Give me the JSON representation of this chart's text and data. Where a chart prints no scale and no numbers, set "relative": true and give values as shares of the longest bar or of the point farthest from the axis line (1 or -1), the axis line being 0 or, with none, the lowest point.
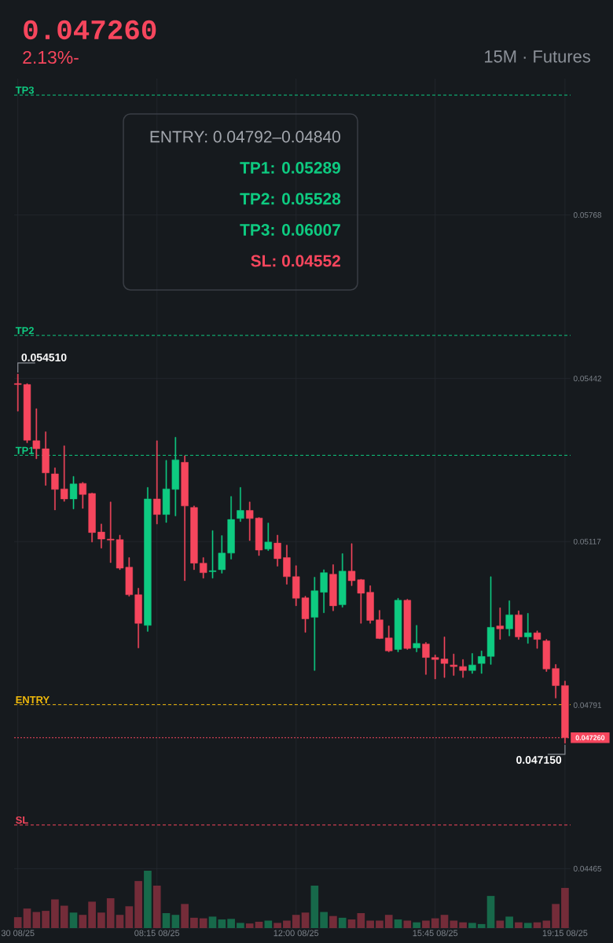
{
  "chart_data": [
    {
      "type": "candlestick",
      "title": "0.047260",
      "subtitle": "2.13%-",
      "categories": [
        "30 08/25",
        null,
        null,
        null,
        null,
        null,
        null,
        null,
        null,
        null,
        null,
        null,
        null,
        null,
        null,
        "08:15 08/25",
        null,
        null,
        null,
        null,
        null,
        null,
        null,
        null,
        null,
        null,
        null,
        null,
        null,
        null,
        "12:00 08/25",
        null,
        null,
        null,
        null,
        null,
        null,
        null,
        null,
        null,
        null,
        null,
        null,
        null,
        null,
        "15:45 08/25",
        null,
        null,
        null,
        null,
        null,
        null,
        null,
        null,
        null,
        null,
        null,
        null,
        null,
        "19:15 08/25"
      ],
      "ohlc": [
        [
          0.05432,
          0.05451,
          0.05377,
          0.0543
        ],
        [
          0.0543,
          0.05432,
          0.05314,
          0.05319
        ],
        [
          0.05318,
          0.05382,
          0.05282,
          0.05302
        ],
        [
          0.05302,
          0.05336,
          0.05229,
          0.05254
        ],
        [
          0.05252,
          0.05264,
          0.0518,
          0.05221
        ],
        [
          0.05222,
          0.05308,
          0.05197,
          0.05202
        ],
        [
          0.05202,
          0.05247,
          0.05182,
          0.05232
        ],
        [
          0.05233,
          0.05235,
          0.05183,
          0.05211
        ],
        [
          0.05213,
          0.05214,
          0.05116,
          0.05135
        ],
        [
          0.05136,
          0.05152,
          0.05104,
          0.05122
        ],
        [
          0.05122,
          0.05196,
          0.05075,
          0.0512
        ],
        [
          0.05121,
          0.0513,
          0.05061,
          0.05064
        ],
        [
          0.05066,
          0.05085,
          0.05008,
          0.05011
        ],
        [
          0.05011,
          0.05024,
          0.04905,
          0.04954
        ],
        [
          0.0495,
          0.05225,
          0.04938,
          0.05202
        ],
        [
          0.05202,
          0.05318,
          0.05152,
          0.05171
        ],
        [
          0.05171,
          0.05279,
          0.05155,
          0.05222
        ],
        [
          0.05221,
          0.05325,
          0.05168,
          0.0528
        ],
        [
          0.05275,
          0.05288,
          0.05039,
          0.05188
        ],
        [
          0.05185,
          0.05188,
          0.05061,
          0.05074
        ],
        [
          0.05074,
          0.05085,
          0.05044,
          0.05055
        ],
        [
          0.05057,
          0.05139,
          0.05044,
          0.05059
        ],
        [
          0.05061,
          0.05129,
          0.05054,
          0.05094
        ],
        [
          0.05094,
          0.05207,
          0.05082,
          0.05161
        ],
        [
          0.05163,
          0.05225,
          0.05157,
          0.05179
        ],
        [
          0.05179,
          0.05196,
          0.05119,
          0.05163
        ],
        [
          0.05164,
          0.05165,
          0.05089,
          0.051
        ],
        [
          0.05102,
          0.05154,
          0.05099,
          0.05116
        ],
        [
          0.05114,
          0.0513,
          0.05068,
          0.05083
        ],
        [
          0.05085,
          0.0511,
          0.05032,
          0.05047
        ],
        [
          0.05047,
          0.05069,
          0.04989,
          0.05004
        ],
        [
          0.05005,
          0.05008,
          0.04936,
          0.04963
        ],
        [
          0.04966,
          0.05046,
          0.0486,
          0.05019
        ],
        [
          0.05016,
          0.05061,
          0.04975,
          0.05055
        ],
        [
          0.05052,
          0.05071,
          0.04979,
          0.04989
        ],
        [
          0.04991,
          0.05093,
          0.04986,
          0.05058
        ],
        [
          0.05058,
          0.05113,
          0.05029,
          0.05039
        ],
        [
          0.05041,
          0.05042,
          0.04954,
          0.05014
        ],
        [
          0.05016,
          0.05029,
          0.04954,
          0.0496
        ],
        [
          0.04961,
          0.0498,
          0.04923,
          0.04924
        ],
        [
          0.04925,
          0.04949,
          0.04897,
          0.04899
        ],
        [
          0.04902,
          0.05004,
          0.04897,
          0.05
        ],
        [
          0.05,
          0.05002,
          0.04902,
          0.04904
        ],
        [
          0.04905,
          0.0495,
          0.04897,
          0.04914
        ],
        [
          0.04913,
          0.04916,
          0.04852,
          0.04886
        ],
        [
          0.04886,
          0.04891,
          0.04843,
          0.04882
        ],
        [
          0.04883,
          0.04927,
          0.04846,
          0.04874
        ],
        [
          0.04871,
          0.04893,
          0.0485,
          0.04868
        ],
        [
          0.04868,
          0.04882,
          0.04846,
          0.0486
        ],
        [
          0.0486,
          0.04894,
          0.04854,
          0.04871
        ],
        [
          0.04874,
          0.04899,
          0.04854,
          0.04888
        ],
        [
          0.04888,
          0.05047,
          0.04872,
          0.04946
        ],
        [
          0.04949,
          0.04985,
          0.04922,
          0.04943
        ],
        [
          0.04943,
          0.04999,
          0.04929,
          0.04971
        ],
        [
          0.04971,
          0.04979,
          0.04922,
          0.04927
        ],
        [
          0.04927,
          0.04974,
          0.04914,
          0.04935
        ],
        [
          0.04935,
          0.04939,
          0.04904,
          0.04922
        ],
        [
          0.04919,
          0.04922,
          0.04858,
          0.04863
        ],
        [
          0.04864,
          0.04872,
          0.04805,
          0.0483
        ],
        [
          0.0483,
          0.04839,
          0.04715,
          0.04726
        ]
      ],
      "colors": [
        "#f6465d",
        "#f6465d",
        "#f6465d",
        "#f6465d",
        "#f6465d",
        "#f6465d",
        "#0ecb81",
        "#f6465d",
        "#f6465d",
        "#f6465d",
        "#f6465d",
        "#f6465d",
        "#f6465d",
        "#f6465d",
        "#0ecb81",
        "#f6465d",
        "#0ecb81",
        "#0ecb81",
        "#f6465d",
        "#f6465d",
        "#f6465d",
        "#0ecb81",
        "#0ecb81",
        "#0ecb81",
        "#0ecb81",
        "#f6465d",
        "#f6465d",
        "#0ecb81",
        "#f6465d",
        "#f6465d",
        "#f6465d",
        "#f6465d",
        "#0ecb81",
        "#0ecb81",
        "#f6465d",
        "#0ecb81",
        "#f6465d",
        "#f6465d",
        "#f6465d",
        "#f6465d",
        "#f6465d",
        "#0ecb81",
        "#f6465d",
        "#0ecb81",
        "#f6465d",
        "#f6465d",
        "#f6465d",
        "#f6465d",
        "#f6465d",
        "#0ecb81",
        "#0ecb81",
        "#0ecb81",
        "#f6465d",
        "#0ecb81",
        "#f6465d",
        "#0ecb81",
        "#f6465d",
        "#f6465d",
        "#f6465d",
        "#f6465d"
      ],
      "ylim": [
        0.04345,
        0.0604
      ],
      "yticks": [
        0.04465,
        0.04791,
        0.05117,
        0.05442,
        0.05768
      ],
      "grid": true,
      "ref_lines": [
        {
          "axis": "y",
          "value": 0.06007,
          "label": "TP3",
          "color": "#0ecb81",
          "line_style": "dashed"
        },
        {
          "axis": "y",
          "value": 0.05528,
          "label": "TP2",
          "color": "#0ecb81",
          "line_style": "dashed"
        },
        {
          "axis": "y",
          "value": 0.05289,
          "label": "TP1",
          "color": "#0ecb81",
          "line_style": "dashed"
        },
        {
          "axis": "y",
          "value": 0.04792,
          "label": "ENTRY",
          "color": "#f0b90b",
          "line_style": "dashed"
        },
        {
          "axis": "y",
          "value": 0.04726,
          "label": "0.047260",
          "color": "#f6465d",
          "line_style": "dotted"
        },
        {
          "axis": "y",
          "value": 0.04552,
          "label": "SL",
          "color": "#f6465d",
          "line_style": "dashed"
        }
      ],
      "annotations": [
        {
          "text": "0.054510",
          "x": "30 08/25",
          "y": 0.05451
        },
        {
          "text": "0.047150",
          "x": "19:15 08/25",
          "y": 0.04715
        },
        "ENTRY: 0.04792–0.04840",
        "TP1: 0.05289",
        "TP2: 0.05528",
        "TP3: 0.06007",
        "SL: 0.04552",
        "15M · Futures"
      ]
    },
    {
      "type": "bar",
      "categories": [
        null,
        null,
        null,
        null,
        null,
        null,
        null,
        null,
        null,
        null,
        null,
        null,
        null,
        null,
        null,
        null,
        null,
        null,
        null,
        null,
        null,
        null,
        null,
        null,
        null,
        null,
        null,
        null,
        null,
        null,
        null,
        null,
        null,
        null,
        null,
        null,
        null,
        null,
        null,
        null,
        null,
        null,
        null,
        null,
        null,
        null,
        null,
        null,
        null,
        null,
        null,
        null,
        null,
        null,
        null,
        null,
        null,
        null,
        null,
        null
      ],
      "values": [
        0.19,
        0.34,
        0.28,
        0.3,
        0.5,
        0.39,
        0.27,
        0.23,
        0.46,
        0.27,
        0.52,
        0.23,
        0.38,
        0.82,
        1,
        0.74,
        0.26,
        0.23,
        0.42,
        0.18,
        0.17,
        0.2,
        0.15,
        0.16,
        0.09,
        0.08,
        0.11,
        0.13,
        0.09,
        0.13,
        0.23,
        0.27,
        0.74,
        0.28,
        0.21,
        0.18,
        0.15,
        0.26,
        0.13,
        0.13,
        0.23,
        0.15,
        0.13,
        0.1,
        0.13,
        0.17,
        0.23,
        0.13,
        0.1,
        0.09,
        0.07,
        0.56,
        0.13,
        0.2,
        0.1,
        0.09,
        0.1,
        0.13,
        0.42,
        0.7
      ],
      "colors": [
        "#742c39",
        "#742c39",
        "#742c39",
        "#742c39",
        "#742c39",
        "#742c39",
        "#17694a",
        "#742c39",
        "#742c39",
        "#742c39",
        "#742c39",
        "#742c39",
        "#742c39",
        "#742c39",
        "#17694a",
        "#742c39",
        "#17694a",
        "#17694a",
        "#742c39",
        "#742c39",
        "#742c39",
        "#17694a",
        "#17694a",
        "#17694a",
        "#17694a",
        "#742c39",
        "#742c39",
        "#17694a",
        "#742c39",
        "#742c39",
        "#742c39",
        "#742c39",
        "#17694a",
        "#17694a",
        "#742c39",
        "#17694a",
        "#742c39",
        "#742c39",
        "#742c39",
        "#742c39",
        "#742c39",
        "#17694a",
        "#742c39",
        "#17694a",
        "#742c39",
        "#742c39",
        "#742c39",
        "#742c39",
        "#742c39",
        "#17694a",
        "#17694a",
        "#17694a",
        "#742c39",
        "#17694a",
        "#742c39",
        "#17694a",
        "#742c39",
        "#742c39",
        "#742c39",
        "#742c39"
      ],
      "relative": true
    }
  ]
}
